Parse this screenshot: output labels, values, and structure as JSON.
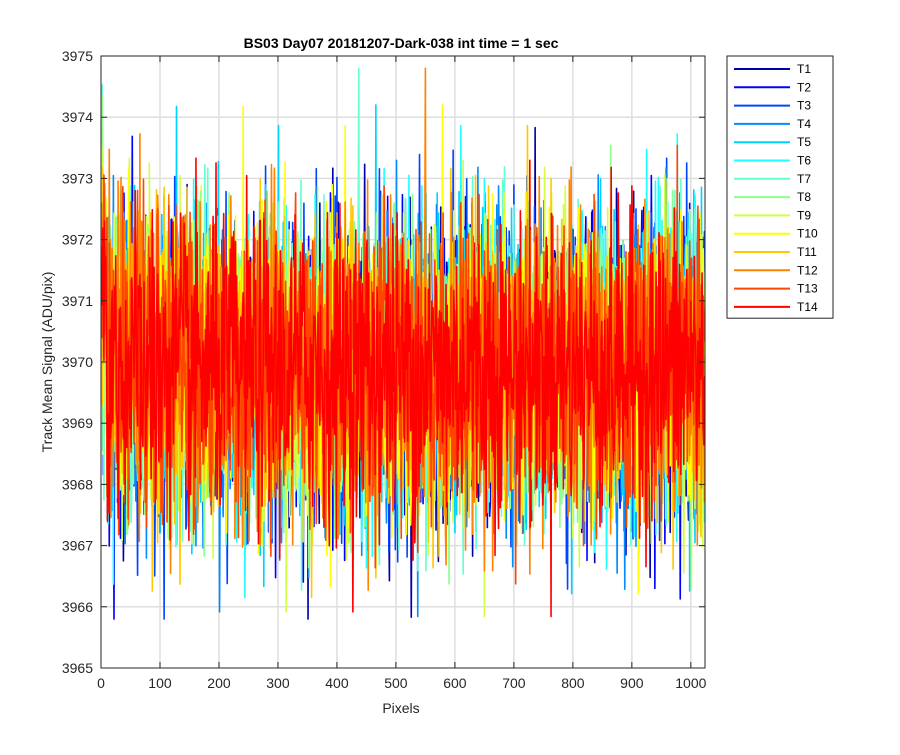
{
  "chart_data": {
    "type": "line",
    "title": "BS03 Day07 20181207-Dark-038 int time = 1 sec",
    "xlabel": "Pixels",
    "ylabel": "Track Mean Signal (ADU/pix)",
    "xlim": [
      0,
      1024
    ],
    "ylim": [
      3965,
      3975
    ],
    "xticks": [
      0,
      100,
      200,
      300,
      400,
      500,
      600,
      700,
      800,
      900,
      1000
    ],
    "yticks": [
      3965,
      3966,
      3967,
      3968,
      3969,
      3970,
      3971,
      3972,
      3973,
      3974,
      3975
    ],
    "grid": true,
    "legend_position": "outside-right-top",
    "x": {
      "start": 1,
      "end": 1024
    },
    "noise": {
      "mean": 3969.9,
      "std": 1.2,
      "observed_min": 3965.8,
      "observed_max": 3974.8
    },
    "series": [
      {
        "name": "T1",
        "color": "#0000a8"
      },
      {
        "name": "T2",
        "color": "#0000ff"
      },
      {
        "name": "T3",
        "color": "#0046ff"
      },
      {
        "name": "T4",
        "color": "#008cff"
      },
      {
        "name": "T5",
        "color": "#00d2ff"
      },
      {
        "name": "T6",
        "color": "#1effff"
      },
      {
        "name": "T7",
        "color": "#64ffd2"
      },
      {
        "name": "T8",
        "color": "#8cff8c"
      },
      {
        "name": "T9",
        "color": "#d2ff46"
      },
      {
        "name": "T10",
        "color": "#ffff00"
      },
      {
        "name": "T11",
        "color": "#ffc800"
      },
      {
        "name": "T12",
        "color": "#ff8200"
      },
      {
        "name": "T13",
        "color": "#ff4600"
      },
      {
        "name": "T14",
        "color": "#ff0000"
      }
    ]
  }
}
